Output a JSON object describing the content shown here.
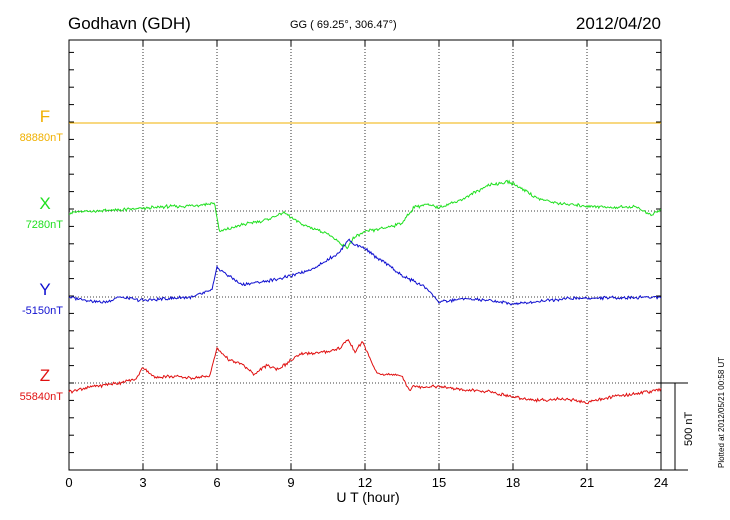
{
  "header": {
    "station": "Godhavn (GDH)",
    "coords": "GG ( 69.25°, 306.47°)",
    "date": "2012/04/20"
  },
  "footer": {
    "plotted": "Plotted at 2012/05/21 00:58 UT"
  },
  "colors": {
    "F": "#f0b000",
    "X": "#20e020",
    "Y": "#1010d0",
    "Z": "#e01010",
    "frame": "#000000"
  },
  "chart_data": {
    "type": "line",
    "title": "Godhavn (GDH)",
    "xlabel": "U T (hour)",
    "ylabel": "",
    "x_ticks": [
      "0",
      "3",
      "6",
      "9",
      "12",
      "15",
      "18",
      "21",
      "24"
    ],
    "xlim": [
      0,
      24
    ],
    "scale_bar": "500 nT",
    "scale_bar_nT": 500,
    "series": [
      {
        "name": "F",
        "baseline_label": "88880nT",
        "x": [
          0,
          24
        ],
        "values": [
          0,
          0
        ]
      },
      {
        "name": "X",
        "baseline_label": "7280nT",
        "x": [
          0,
          1,
          2,
          3,
          4,
          5,
          5.9,
          6.1,
          7,
          8,
          8.7,
          9.5,
          10.5,
          11,
          11.3,
          11.5,
          12,
          13,
          13.5,
          14,
          14.5,
          15,
          16,
          17,
          17.5,
          17.8,
          18.5,
          19,
          20,
          21,
          22,
          23,
          23.6,
          24
        ],
        "values": [
          -10,
          0,
          5,
          15,
          25,
          30,
          45,
          -120,
          -80,
          -50,
          -10,
          -80,
          -130,
          -190,
          -210,
          -160,
          -120,
          -90,
          -70,
          25,
          35,
          20,
          70,
          150,
          160,
          170,
          120,
          70,
          40,
          30,
          20,
          25,
          -25,
          10
        ]
      },
      {
        "name": "Y",
        "baseline_label": "-5150nT",
        "x": [
          0,
          1,
          1.5,
          2,
          3,
          5,
          5.8,
          6,
          6.5,
          7,
          8,
          9,
          10,
          11,
          11.3,
          11.6,
          12,
          12.5,
          13,
          13.5,
          14,
          14.5,
          15,
          16,
          17,
          18,
          19,
          20,
          22,
          24
        ],
        "values": [
          0,
          -25,
          -30,
          0,
          -20,
          0,
          40,
          170,
          120,
          70,
          90,
          120,
          170,
          260,
          330,
          300,
          280,
          220,
          180,
          120,
          90,
          50,
          -30,
          -10,
          -20,
          -40,
          -25,
          -10,
          -5,
          0
        ]
      },
      {
        "name": "Z",
        "baseline_label": "55840nT",
        "x": [
          0,
          1,
          2,
          2.7,
          3,
          3.5,
          4,
          5,
          5.7,
          6,
          6.5,
          7,
          7.5,
          8,
          8.5,
          9,
          9.5,
          10,
          10.5,
          11,
          11.3,
          11.6,
          11.9,
          12.2,
          12.5,
          13,
          13.5,
          13.8,
          14,
          15,
          16,
          17,
          18,
          19,
          20,
          21,
          22,
          23,
          24
        ],
        "values": [
          -50,
          -20,
          0,
          20,
          90,
          30,
          40,
          30,
          40,
          200,
          130,
          110,
          50,
          100,
          80,
          130,
          170,
          170,
          180,
          200,
          250,
          180,
          240,
          140,
          50,
          50,
          40,
          -40,
          -20,
          -20,
          -40,
          -50,
          -80,
          -100,
          -90,
          -110,
          -80,
          -60,
          -40
        ]
      }
    ],
    "grid": true
  }
}
